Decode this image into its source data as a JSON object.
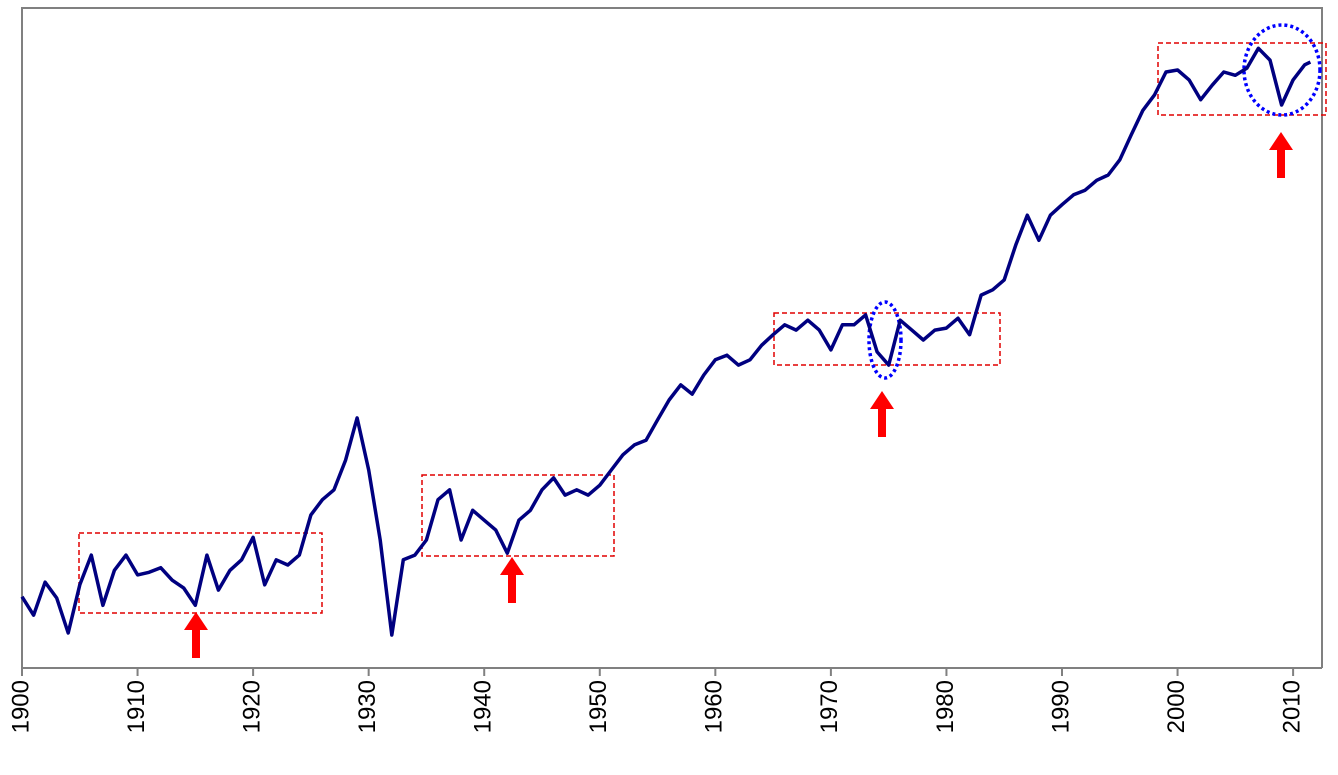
{
  "chart_data": {
    "type": "line",
    "x": [
      1900,
      1901,
      1902,
      1903,
      1904,
      1905,
      1906,
      1907,
      1908,
      1909,
      1910,
      1911,
      1912,
      1913,
      1914,
      1915,
      1916,
      1917,
      1918,
      1919,
      1920,
      1921,
      1922,
      1923,
      1924,
      1925,
      1926,
      1927,
      1928,
      1929,
      1930,
      1931,
      1932,
      1933,
      1934,
      1935,
      1936,
      1937,
      1938,
      1939,
      1940,
      1941,
      1942,
      1943,
      1944,
      1945,
      1946,
      1947,
      1948,
      1949,
      1950,
      1951,
      1952,
      1953,
      1954,
      1955,
      1956,
      1957,
      1958,
      1959,
      1960,
      1961,
      1962,
      1963,
      1964,
      1965,
      1966,
      1967,
      1968,
      1969,
      1970,
      1971,
      1972,
      1973,
      1974,
      1975,
      1976,
      1977,
      1978,
      1979,
      1980,
      1981,
      1982,
      1983,
      1984,
      1985,
      1986,
      1987,
      1988,
      1989,
      1990,
      1991,
      1992,
      1993,
      1994,
      1995,
      1996,
      1997,
      1998,
      1999,
      2000,
      2001,
      2002,
      2003,
      2004,
      2005,
      2006,
      2007,
      2008,
      2009,
      2010,
      2011,
      2011.5
    ],
    "values": [
      10.8,
      8,
      13,
      10.6,
      5.3,
      12.6,
      17.1,
      9.5,
      14.8,
      17.1,
      14.1,
      14.5,
      15.2,
      13.3,
      12.1,
      9.5,
      17.1,
      11.8,
      14.8,
      16.4,
      19.8,
      12.6,
      16.4,
      15.6,
      17.1,
      23.2,
      25.5,
      27,
      31.5,
      37.9,
      30,
      19.4,
      5,
      16.4,
      17.1,
      19.4,
      25.5,
      27,
      19.4,
      23.9,
      22.4,
      20.9,
      17.4,
      22.4,
      23.9,
      27,
      28.8,
      26.2,
      27,
      26.2,
      27.7,
      30,
      32.3,
      33.8,
      34.5,
      37.6,
      40.6,
      42.9,
      41.5,
      44.4,
      46.7,
      47.4,
      45.9,
      46.7,
      48.9,
      50.5,
      52,
      51.2,
      52.7,
      51.2,
      48.2,
      52,
      52,
      53.5,
      47.9,
      45.9,
      52.7,
      51.2,
      49.7,
      51.2,
      51.5,
      53,
      50.5,
      56.5,
      57.3,
      58.8,
      64.1,
      68.6,
      64.8,
      68.6,
      70.2,
      71.7,
      72.4,
      73.9,
      74.7,
      77,
      80.8,
      84.5,
      86.8,
      90.3,
      90.6,
      89.1,
      86.1,
      88.3,
      90.3,
      89.8,
      90.9,
      93.9,
      92.1,
      85.3,
      89.1,
      91.4,
      91.8
    ],
    "color": "#000080",
    "xlim": [
      1900,
      2012.5
    ],
    "ylim": [
      0,
      100
    ],
    "xticks": [
      1900,
      1910,
      1920,
      1930,
      1940,
      1950,
      1960,
      1970,
      1980,
      1990,
      2000,
      2010
    ]
  }
}
